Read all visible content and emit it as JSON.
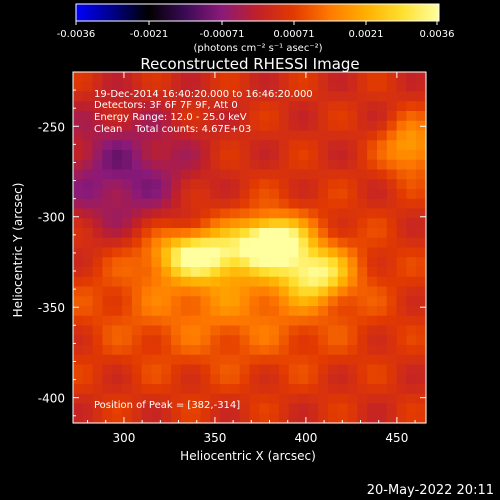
{
  "colorbar": {
    "ticks": [
      "-0.0036",
      "-0.0021",
      "-0.00071",
      "0.00071",
      "0.0021",
      "0.0036"
    ],
    "units": "(photons cm⁻² s⁻¹ asec⁻²)",
    "range": [
      -0.0036,
      0.0036
    ],
    "stops": [
      "#0000ff",
      "#000088",
      "#000000",
      "#3a0a55",
      "#8a1a7a",
      "#c0202a",
      "#e23a00",
      "#ff7a00",
      "#ffb000",
      "#ffe030",
      "#ffffa0"
    ]
  },
  "chart_data": {
    "type": "heatmap",
    "title": "Reconstructed RHESSI Image",
    "xlabel": "Heliocentric X (arcsec)",
    "ylabel": "Heliocentric Y (arcsec)",
    "xlim": [
      272,
      466
    ],
    "ylim": [
      -414,
      -220
    ],
    "xticks": [
      "300",
      "350",
      "400",
      "450"
    ],
    "xtick_values": [
      300,
      350,
      400,
      450
    ],
    "yticks": [
      "-250",
      "-300",
      "-350",
      "-400"
    ],
    "ytick_values": [
      -250,
      -300,
      -350,
      -400
    ],
    "peak": [
      382,
      -314
    ],
    "sources": [
      {
        "x": 382,
        "y": -314,
        "sx": 12,
        "sy": 9,
        "amp": 0.0036
      },
      {
        "x": 342,
        "y": -321,
        "sx": 18,
        "sy": 9,
        "amp": 0.0027
      },
      {
        "x": 405,
        "y": -331,
        "sx": 13,
        "sy": 10,
        "amp": 0.0024
      },
      {
        "x": 356,
        "y": -340,
        "sx": 55,
        "sy": 30,
        "amp": 0.0012
      },
      {
        "x": 458,
        "y": -262,
        "sx": 11,
        "sy": 11,
        "amp": 0.0017
      },
      {
        "x": 300,
        "y": -280,
        "sx": 28,
        "sy": 26,
        "amp": -0.0013
      }
    ]
  },
  "annotations": {
    "time": "19-Dec-2014 16:40:20.000 to 16:46:20.000",
    "detectors": "Detectors: 3F 6F 7F 9F, Att 0",
    "energy": "Energy Range: 12.0 - 25.0 keV",
    "clean": "Clean    Total counts: 4.67E+03",
    "peak_label": "Position of Peak = [382,-314]"
  },
  "footer_date": "20-May-2022 20:11"
}
